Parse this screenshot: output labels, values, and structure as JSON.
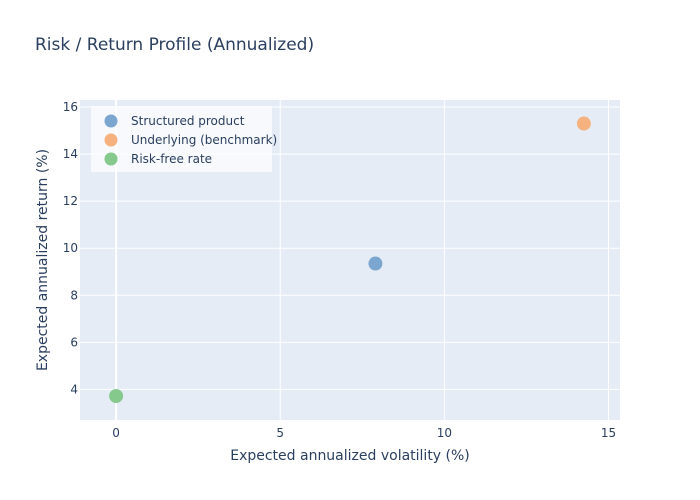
{
  "chart_data": {
    "type": "scatter",
    "title": "Risk / Return Profile (Annualized)",
    "xlabel": "Expected annualized volatility (%)",
    "ylabel": "Expected annualized return (%)",
    "xlim": [
      -1.1,
      15.35
    ],
    "ylim": [
      2.7,
      16.3
    ],
    "xticks": [
      0,
      5,
      10,
      15
    ],
    "yticks": [
      4,
      6,
      8,
      10,
      12,
      14,
      16
    ],
    "grid": true,
    "legend_position": "top-left",
    "series": [
      {
        "name": "Structured product",
        "color": "#7aa6cf",
        "points": [
          {
            "x": 7.9,
            "y": 9.35
          }
        ]
      },
      {
        "name": "Underlying (benchmark)",
        "color": "#f5b27e",
        "points": [
          {
            "x": 14.25,
            "y": 15.3
          }
        ]
      },
      {
        "name": "Risk-free rate",
        "color": "#86c98c",
        "points": [
          {
            "x": 0.0,
            "y": 3.72
          }
        ]
      }
    ]
  }
}
